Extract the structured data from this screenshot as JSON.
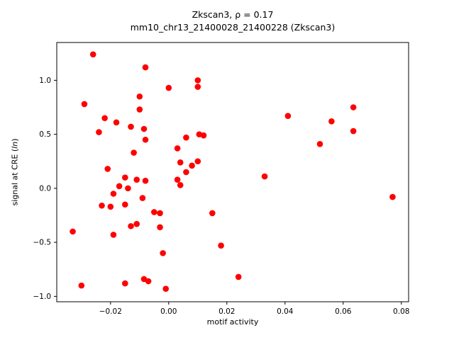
{
  "chart_data": {
    "type": "scatter",
    "title_line1": "Zkscan3, ρ = 0.17",
    "title_line2": "mm10_chr13_21400028_21400228 (Zkscan3)",
    "xlabel": "motif activity",
    "ylabel_prefix": "signal at CRE (",
    "ylabel_italic": "ln",
    "ylabel_suffix": ")",
    "marker_color": "#ff0000",
    "grid": false,
    "legend": "none",
    "xlim": [
      -0.0385,
      0.0825
    ],
    "ylim": [
      -1.05,
      1.35
    ],
    "xticks": {
      "values": [
        -0.02,
        0.0,
        0.02,
        0.04,
        0.06,
        0.08
      ],
      "labels": [
        "−0.02",
        "0.00",
        "0.02",
        "0.04",
        "0.06",
        "0.08"
      ]
    },
    "yticks": {
      "values": [
        -1.0,
        -0.5,
        0.0,
        0.5,
        1.0
      ],
      "labels": [
        "−1.0",
        "−0.5",
        "0.0",
        "0.5",
        "1.0"
      ]
    },
    "points": [
      [
        -0.026,
        1.24
      ],
      [
        -0.029,
        0.78
      ],
      [
        -0.008,
        1.12
      ],
      [
        0.0,
        0.93
      ],
      [
        0.01,
        1.0
      ],
      [
        0.01,
        0.94
      ],
      [
        -0.01,
        0.85
      ],
      [
        -0.01,
        0.73
      ],
      [
        -0.022,
        0.65
      ],
      [
        -0.024,
        0.52
      ],
      [
        -0.018,
        0.61
      ],
      [
        -0.013,
        0.57
      ],
      [
        -0.0085,
        0.55
      ],
      [
        -0.008,
        0.45
      ],
      [
        0.006,
        0.47
      ],
      [
        0.0105,
        0.5
      ],
      [
        0.012,
        0.49
      ],
      [
        0.041,
        0.67
      ],
      [
        0.056,
        0.62
      ],
      [
        0.0635,
        0.75
      ],
      [
        0.0635,
        0.53
      ],
      [
        0.052,
        0.41
      ],
      [
        0.003,
        0.37
      ],
      [
        -0.012,
        0.33
      ],
      [
        0.004,
        0.24
      ],
      [
        0.008,
        0.21
      ],
      [
        0.01,
        0.25
      ],
      [
        0.006,
        0.15
      ],
      [
        0.033,
        0.11
      ],
      [
        -0.021,
        0.18
      ],
      [
        -0.015,
        0.1
      ],
      [
        -0.011,
        0.08
      ],
      [
        -0.017,
        0.02
      ],
      [
        -0.019,
        -0.05
      ],
      [
        -0.014,
        0.0
      ],
      [
        -0.008,
        0.07
      ],
      [
        0.003,
        0.08
      ],
      [
        0.004,
        0.03
      ],
      [
        -0.023,
        -0.16
      ],
      [
        -0.02,
        -0.17
      ],
      [
        -0.015,
        -0.15
      ],
      [
        -0.009,
        -0.09
      ],
      [
        -0.005,
        -0.22
      ],
      [
        -0.003,
        -0.23
      ],
      [
        0.015,
        -0.23
      ],
      [
        -0.003,
        -0.36
      ],
      [
        -0.011,
        -0.33
      ],
      [
        -0.013,
        -0.35
      ],
      [
        -0.019,
        -0.43
      ],
      [
        -0.033,
        -0.4
      ],
      [
        0.018,
        -0.53
      ],
      [
        -0.002,
        -0.6
      ],
      [
        -0.03,
        -0.9
      ],
      [
        -0.015,
        -0.88
      ],
      [
        -0.0085,
        -0.84
      ],
      [
        -0.007,
        -0.86
      ],
      [
        0.024,
        -0.82
      ],
      [
        -0.001,
        -0.93
      ],
      [
        0.077,
        -0.08
      ]
    ]
  }
}
